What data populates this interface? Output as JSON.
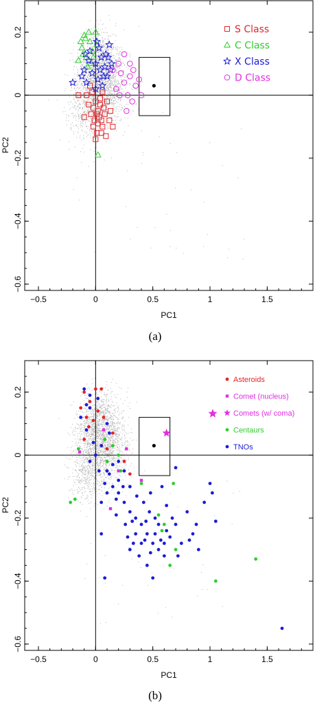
{
  "chart_data": [
    {
      "type": "scatter",
      "title": "",
      "xlabel": "PC1",
      "ylabel": "PC2",
      "caption": "(a)",
      "xlim": [
        -0.62,
        1.9
      ],
      "ylim": [
        -0.62,
        0.3
      ],
      "xticks": [
        -0.5,
        0,
        0.5,
        1,
        1.5
      ],
      "xtick_labels": [
        "−0.5",
        "0",
        "0.5",
        "1",
        "1.5"
      ],
      "yticks": [
        0.2,
        0,
        -0.2,
        -0.4,
        -0.6
      ],
      "ytick_labels": [
        "0.2",
        "0",
        "−0.2",
        "−0.4",
        "−0.6"
      ],
      "box": {
        "x0": 0.38,
        "x1": 0.65,
        "y0": -0.065,
        "y1": 0.12
      },
      "target": {
        "x": 0.51,
        "y": 0.03
      },
      "background_cloud": {
        "color": "#b4b4b4",
        "centers": [
          [
            0.0,
            0.08
          ],
          [
            -0.05,
            -0.04
          ],
          [
            0.05,
            0.1
          ],
          [
            0.12,
            0.02
          ]
        ]
      },
      "legend_position": "top-right",
      "series": [
        {
          "name": "S Class",
          "marker": "square",
          "color": "#e0262b",
          "points": [
            [
              0.0,
              -0.02
            ],
            [
              0.02,
              -0.05
            ],
            [
              0.05,
              -0.08
            ],
            [
              -0.02,
              -0.1
            ],
            [
              0.04,
              -0.03
            ],
            [
              0.08,
              -0.06
            ],
            [
              0.01,
              -0.12
            ],
            [
              -0.04,
              -0.06
            ],
            [
              0.06,
              -0.1
            ],
            [
              0.03,
              -0.07
            ],
            [
              -0.06,
              -0.03
            ],
            [
              0.1,
              -0.02
            ],
            [
              0.0,
              -0.14
            ],
            [
              -0.08,
              0.0
            ],
            [
              0.12,
              -0.08
            ],
            [
              0.07,
              -0.04
            ],
            [
              -0.03,
              0.01
            ],
            [
              0.02,
              -0.09
            ],
            [
              0.15,
              -0.1
            ],
            [
              -0.1,
              -0.07
            ],
            [
              0.09,
              -0.13
            ],
            [
              -0.15,
              0.0
            ],
            [
              0.04,
              -0.01
            ],
            [
              -0.05,
              0.03
            ],
            [
              0.13,
              -0.05
            ],
            [
              0.01,
              -0.06
            ],
            [
              -0.02,
              -0.04
            ],
            [
              0.05,
              -0.12
            ],
            [
              0.06,
              0.01
            ],
            [
              -0.01,
              -0.08
            ]
          ]
        },
        {
          "name": "C Class",
          "marker": "triangle",
          "color": "#2ecc2e",
          "points": [
            [
              -0.1,
              0.19
            ],
            [
              -0.05,
              0.17
            ],
            [
              -0.08,
              0.12
            ],
            [
              0.0,
              0.2
            ],
            [
              -0.12,
              0.15
            ],
            [
              -0.03,
              0.14
            ],
            [
              -0.07,
              0.09
            ],
            [
              -0.15,
              0.11
            ],
            [
              0.01,
              0.16
            ],
            [
              -0.09,
              0.18
            ],
            [
              -0.04,
              0.1
            ],
            [
              -0.11,
              0.13
            ],
            [
              0.02,
              -0.19
            ],
            [
              -0.06,
              0.2
            ],
            [
              -0.13,
              0.17
            ],
            [
              -0.02,
              0.12
            ]
          ]
        },
        {
          "name": "X Class",
          "marker": "star",
          "color": "#1c1cd6",
          "points": [
            [
              0.0,
              0.1
            ],
            [
              0.05,
              0.12
            ],
            [
              -0.05,
              0.14
            ],
            [
              0.08,
              0.09
            ],
            [
              0.03,
              0.15
            ],
            [
              0.1,
              0.06
            ],
            [
              -0.1,
              0.08
            ],
            [
              0.02,
              0.05
            ],
            [
              0.12,
              0.16
            ],
            [
              -0.08,
              0.04
            ],
            [
              0.06,
              0.03
            ],
            [
              0.14,
              0.1
            ],
            [
              -0.2,
              0.04
            ],
            [
              -0.12,
              0.06
            ],
            [
              0.09,
              0.13
            ],
            [
              0.0,
              0.02
            ],
            [
              -0.03,
              0.07
            ],
            [
              0.04,
              0.08
            ],
            [
              0.11,
              0.12
            ],
            [
              -0.06,
              0.11
            ],
            [
              0.07,
              0.06
            ],
            [
              0.13,
              0.08
            ],
            [
              -0.09,
              0.13
            ],
            [
              0.01,
              0.17
            ]
          ]
        },
        {
          "name": "D Class",
          "marker": "circle",
          "color": "#e030e0",
          "points": [
            [
              0.25,
              0.13
            ],
            [
              0.2,
              0.1
            ],
            [
              0.3,
              0.06
            ],
            [
              0.28,
              0.0
            ],
            [
              0.22,
              0.07
            ],
            [
              0.35,
              0.03
            ],
            [
              0.18,
              0.02
            ],
            [
              0.32,
              -0.02
            ],
            [
              0.25,
              0.04
            ],
            [
              0.4,
              0.0
            ],
            [
              0.15,
              0.08
            ],
            [
              0.3,
              0.1
            ],
            [
              0.27,
              -0.05
            ],
            [
              0.38,
              0.05
            ],
            [
              0.21,
              0.0
            ],
            [
              0.33,
              0.08
            ]
          ]
        }
      ]
    },
    {
      "type": "scatter",
      "title": "",
      "xlabel": "PC1",
      "ylabel": "PC2",
      "caption": "(b)",
      "xlim": [
        -0.62,
        1.9
      ],
      "ylim": [
        -0.62,
        0.3
      ],
      "xticks": [
        -0.5,
        0,
        0.5,
        1,
        1.5
      ],
      "xtick_labels": [
        "−0.5",
        "0",
        "0.5",
        "1",
        "1.5"
      ],
      "yticks": [
        0.2,
        0,
        -0.2,
        -0.4,
        -0.6
      ],
      "ytick_labels": [
        "0.2",
        "0",
        "−0.2",
        "−0.4",
        "−0.6"
      ],
      "box": {
        "x0": 0.38,
        "x1": 0.65,
        "y0": -0.065,
        "y1": 0.12
      },
      "target": {
        "x": 0.51,
        "y": 0.03
      },
      "background_cloud": {
        "color": "#b4b4b4",
        "centers": [
          [
            0.0,
            0.08
          ],
          [
            -0.05,
            -0.04
          ],
          [
            0.05,
            0.1
          ],
          [
            0.12,
            0.02
          ]
        ]
      },
      "legend_position": "top-right",
      "series": [
        {
          "name": "Asteroids",
          "marker": "dot",
          "color": "#e0262b",
          "points": [
            [
              -0.1,
              0.2
            ],
            [
              -0.05,
              0.17
            ],
            [
              0.0,
              0.21
            ],
            [
              -0.08,
              0.12
            ],
            [
              0.05,
              0.21
            ],
            [
              -0.13,
              0.15
            ],
            [
              0.02,
              0.14
            ],
            [
              -0.02,
              0.11
            ],
            [
              0.07,
              0.12
            ],
            [
              -0.06,
              0.09
            ],
            [
              0.08,
              0.05
            ],
            [
              0.1,
              0.02
            ],
            [
              0.25,
              -0.02
            ],
            [
              0.3,
              -0.06
            ],
            [
              -0.1,
              0.05
            ],
            [
              0.15,
              0.07
            ]
          ]
        },
        {
          "name": "Comet (nucleus)",
          "marker": "square-dot",
          "color": "#e030e0",
          "points": [
            [
              0.07,
              0.08
            ],
            [
              -0.14,
              0.01
            ],
            [
              0.13,
              -0.17
            ],
            [
              0.27,
              0.02
            ],
            [
              0.4,
              -0.08
            ],
            [
              0.2,
              -0.05
            ]
          ]
        },
        {
          "name": "Comets (w/ coma)",
          "marker": "star",
          "color": "#e030e0",
          "points": [
            [
              0.62,
              0.07
            ]
          ]
        },
        {
          "name": "Centaurs",
          "marker": "dot",
          "color": "#2ecc2e",
          "points": [
            [
              -0.15,
              0.02
            ],
            [
              0.08,
              0.05
            ],
            [
              0.15,
              0.03
            ],
            [
              0.2,
              0.0
            ],
            [
              0.22,
              -0.05
            ],
            [
              0.3,
              -0.1
            ],
            [
              0.6,
              -0.22
            ],
            [
              0.58,
              -0.24
            ],
            [
              0.7,
              -0.3
            ],
            [
              0.65,
              -0.35
            ],
            [
              1.4,
              -0.33
            ],
            [
              1.05,
              -0.4
            ],
            [
              -0.22,
              -0.15
            ],
            [
              -0.18,
              -0.14
            ],
            [
              0.1,
              -0.02
            ],
            [
              0.4,
              -0.09
            ],
            [
              0.68,
              -0.09
            ],
            [
              0.55,
              -0.19
            ]
          ]
        },
        {
          "name": "TNOs",
          "marker": "dot",
          "color": "#1c1cd6",
          "points": [
            [
              -0.1,
              0.21
            ],
            [
              -0.05,
              0.19
            ],
            [
              0.02,
              0.18
            ],
            [
              -0.13,
              0.12
            ],
            [
              -0.08,
              0.08
            ],
            [
              0.05,
              0.03
            ],
            [
              0.0,
              0.0
            ],
            [
              -0.05,
              -0.02
            ],
            [
              0.1,
              -0.05
            ],
            [
              0.15,
              -0.1
            ],
            [
              0.2,
              -0.12
            ],
            [
              0.25,
              -0.15
            ],
            [
              0.3,
              -0.18
            ],
            [
              0.35,
              -0.2
            ],
            [
              0.4,
              -0.22
            ],
            [
              0.45,
              -0.25
            ],
            [
              0.5,
              -0.28
            ],
            [
              0.55,
              -0.3
            ],
            [
              0.6,
              -0.32
            ],
            [
              0.65,
              -0.26
            ],
            [
              0.7,
              -0.22
            ],
            [
              0.75,
              -0.28
            ],
            [
              0.8,
              -0.18
            ],
            [
              0.85,
              -0.25
            ],
            [
              0.9,
              -0.3
            ],
            [
              0.95,
              -0.15
            ],
            [
              1.0,
              -0.09
            ],
            [
              1.05,
              -0.21
            ],
            [
              0.5,
              -0.39
            ],
            [
              0.08,
              -0.39
            ],
            [
              0.3,
              -0.3
            ],
            [
              0.35,
              -0.25
            ],
            [
              0.42,
              -0.15
            ],
            [
              0.48,
              -0.12
            ],
            [
              0.52,
              -0.2
            ],
            [
              0.58,
              -0.1
            ],
            [
              0.62,
              -0.16
            ],
            [
              0.38,
              -0.32
            ],
            [
              0.45,
              -0.35
            ],
            [
              0.55,
              -0.22
            ],
            [
              0.25,
              -0.05
            ],
            [
              0.2,
              -0.08
            ],
            [
              0.1,
              -0.12
            ],
            [
              0.05,
              -0.15
            ],
            [
              0.18,
              -0.19
            ],
            [
              0.28,
              -0.26
            ],
            [
              0.33,
              -0.28
            ],
            [
              0.4,
              -0.28
            ],
            [
              0.6,
              -0.28
            ],
            [
              0.72,
              -0.32
            ],
            [
              1.63,
              -0.55
            ],
            [
              0.05,
              -0.25
            ],
            [
              -0.05,
              0.15
            ],
            [
              0.12,
              0.07
            ],
            [
              0.15,
              -0.03
            ],
            [
              0.18,
              -0.14
            ],
            [
              0.3,
              -0.1
            ],
            [
              0.43,
              -0.27
            ],
            [
              0.48,
              -0.31
            ],
            [
              0.52,
              -0.25
            ],
            [
              0.47,
              -0.18
            ],
            [
              0.36,
              -0.13
            ],
            [
              0.2,
              -0.02
            ],
            [
              0.12,
              -0.06
            ],
            [
              0.08,
              -0.09
            ],
            [
              0.7,
              -0.04
            ],
            [
              0.82,
              -0.27
            ],
            [
              0.88,
              -0.22
            ],
            [
              1.02,
              -0.12
            ],
            [
              0.67,
              -0.2
            ],
            [
              0.62,
              -0.24
            ],
            [
              0.57,
              -0.27
            ],
            [
              0.44,
              -0.21
            ],
            [
              0.32,
              -0.21
            ],
            [
              0.26,
              -0.22
            ],
            [
              0.24,
              -0.1
            ],
            [
              0.03,
              -0.05
            ],
            [
              -0.02,
              0.04
            ],
            [
              -0.08,
              0.16
            ],
            [
              0.1,
              0.1
            ]
          ]
        }
      ]
    }
  ]
}
